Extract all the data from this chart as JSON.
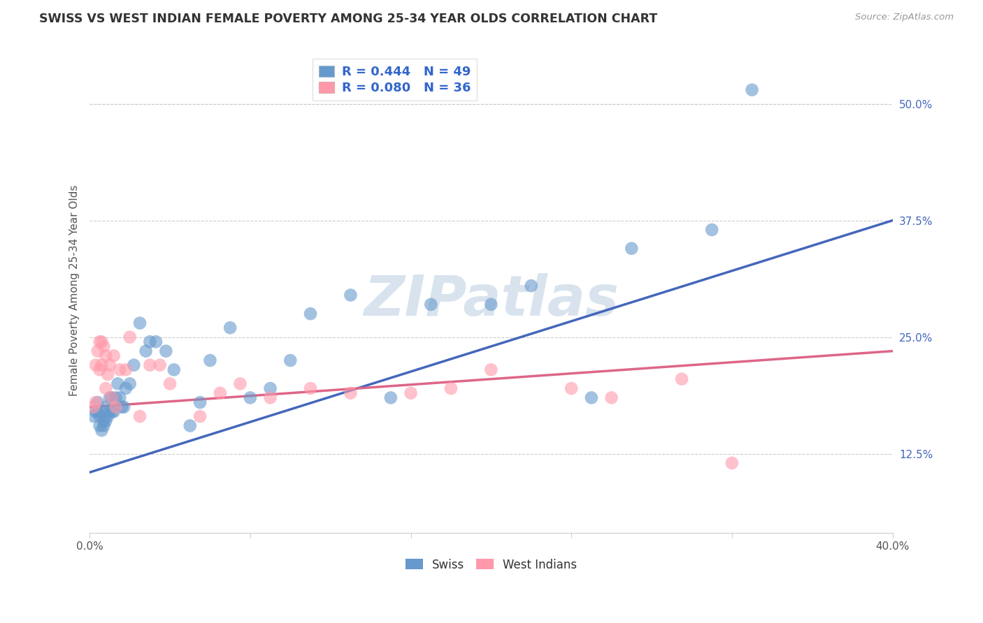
{
  "title": "SWISS VS WEST INDIAN FEMALE POVERTY AMONG 25-34 YEAR OLDS CORRELATION CHART",
  "source": "Source: ZipAtlas.com",
  "ylabel": "Female Poverty Among 25-34 Year Olds",
  "xlim": [
    0.0,
    0.4
  ],
  "ylim": [
    0.04,
    0.56
  ],
  "yticks": [
    0.125,
    0.25,
    0.375,
    0.5
  ],
  "ytick_labels": [
    "12.5%",
    "25.0%",
    "37.5%",
    "50.0%"
  ],
  "xtick_labels": [
    "0.0%",
    "40.0%"
  ],
  "swiss_color": "#6699CC",
  "wi_color": "#FF99AA",
  "swiss_line_color": "#4466BB",
  "wi_line_color": "#DD6688",
  "swiss_R": 0.444,
  "swiss_N": 49,
  "wi_R": 0.08,
  "wi_N": 36,
  "swiss_x": [
    0.002,
    0.003,
    0.004,
    0.004,
    0.005,
    0.005,
    0.006,
    0.006,
    0.007,
    0.007,
    0.008,
    0.008,
    0.009,
    0.01,
    0.01,
    0.011,
    0.011,
    0.012,
    0.013,
    0.014,
    0.015,
    0.016,
    0.017,
    0.018,
    0.02,
    0.022,
    0.025,
    0.028,
    0.03,
    0.033,
    0.038,
    0.042,
    0.05,
    0.055,
    0.06,
    0.07,
    0.08,
    0.09,
    0.1,
    0.11,
    0.13,
    0.15,
    0.17,
    0.2,
    0.22,
    0.25,
    0.27,
    0.31,
    0.33
  ],
  "swiss_y": [
    0.165,
    0.17,
    0.17,
    0.18,
    0.155,
    0.165,
    0.15,
    0.17,
    0.155,
    0.16,
    0.16,
    0.175,
    0.165,
    0.17,
    0.185,
    0.17,
    0.185,
    0.17,
    0.185,
    0.2,
    0.185,
    0.175,
    0.175,
    0.195,
    0.2,
    0.22,
    0.265,
    0.235,
    0.245,
    0.245,
    0.235,
    0.215,
    0.155,
    0.18,
    0.225,
    0.26,
    0.185,
    0.195,
    0.225,
    0.275,
    0.295,
    0.185,
    0.285,
    0.285,
    0.305,
    0.185,
    0.345,
    0.365,
    0.515
  ],
  "wi_x": [
    0.002,
    0.003,
    0.003,
    0.004,
    0.005,
    0.005,
    0.006,
    0.006,
    0.007,
    0.008,
    0.008,
    0.009,
    0.01,
    0.011,
    0.012,
    0.013,
    0.015,
    0.018,
    0.02,
    0.025,
    0.03,
    0.035,
    0.04,
    0.055,
    0.065,
    0.075,
    0.09,
    0.11,
    0.13,
    0.16,
    0.18,
    0.2,
    0.24,
    0.26,
    0.295,
    0.32
  ],
  "wi_y": [
    0.175,
    0.18,
    0.22,
    0.235,
    0.215,
    0.245,
    0.22,
    0.245,
    0.24,
    0.23,
    0.195,
    0.21,
    0.22,
    0.185,
    0.23,
    0.175,
    0.215,
    0.215,
    0.25,
    0.165,
    0.22,
    0.22,
    0.2,
    0.165,
    0.19,
    0.2,
    0.185,
    0.195,
    0.19,
    0.19,
    0.195,
    0.215,
    0.195,
    0.185,
    0.205,
    0.115
  ],
  "swiss_line_x": [
    0.0,
    0.4
  ],
  "swiss_line_y": [
    0.105,
    0.375
  ],
  "wi_line_x": [
    0.0,
    0.4
  ],
  "wi_line_y": [
    0.175,
    0.235
  ],
  "background_color": "#FFFFFF",
  "grid_color": "#CCCCCC",
  "watermark_text": "ZIPatlas",
  "watermark_color": "#C8D8E8",
  "legend_R_color": "#3366CC",
  "legend_N_color": "#333333"
}
